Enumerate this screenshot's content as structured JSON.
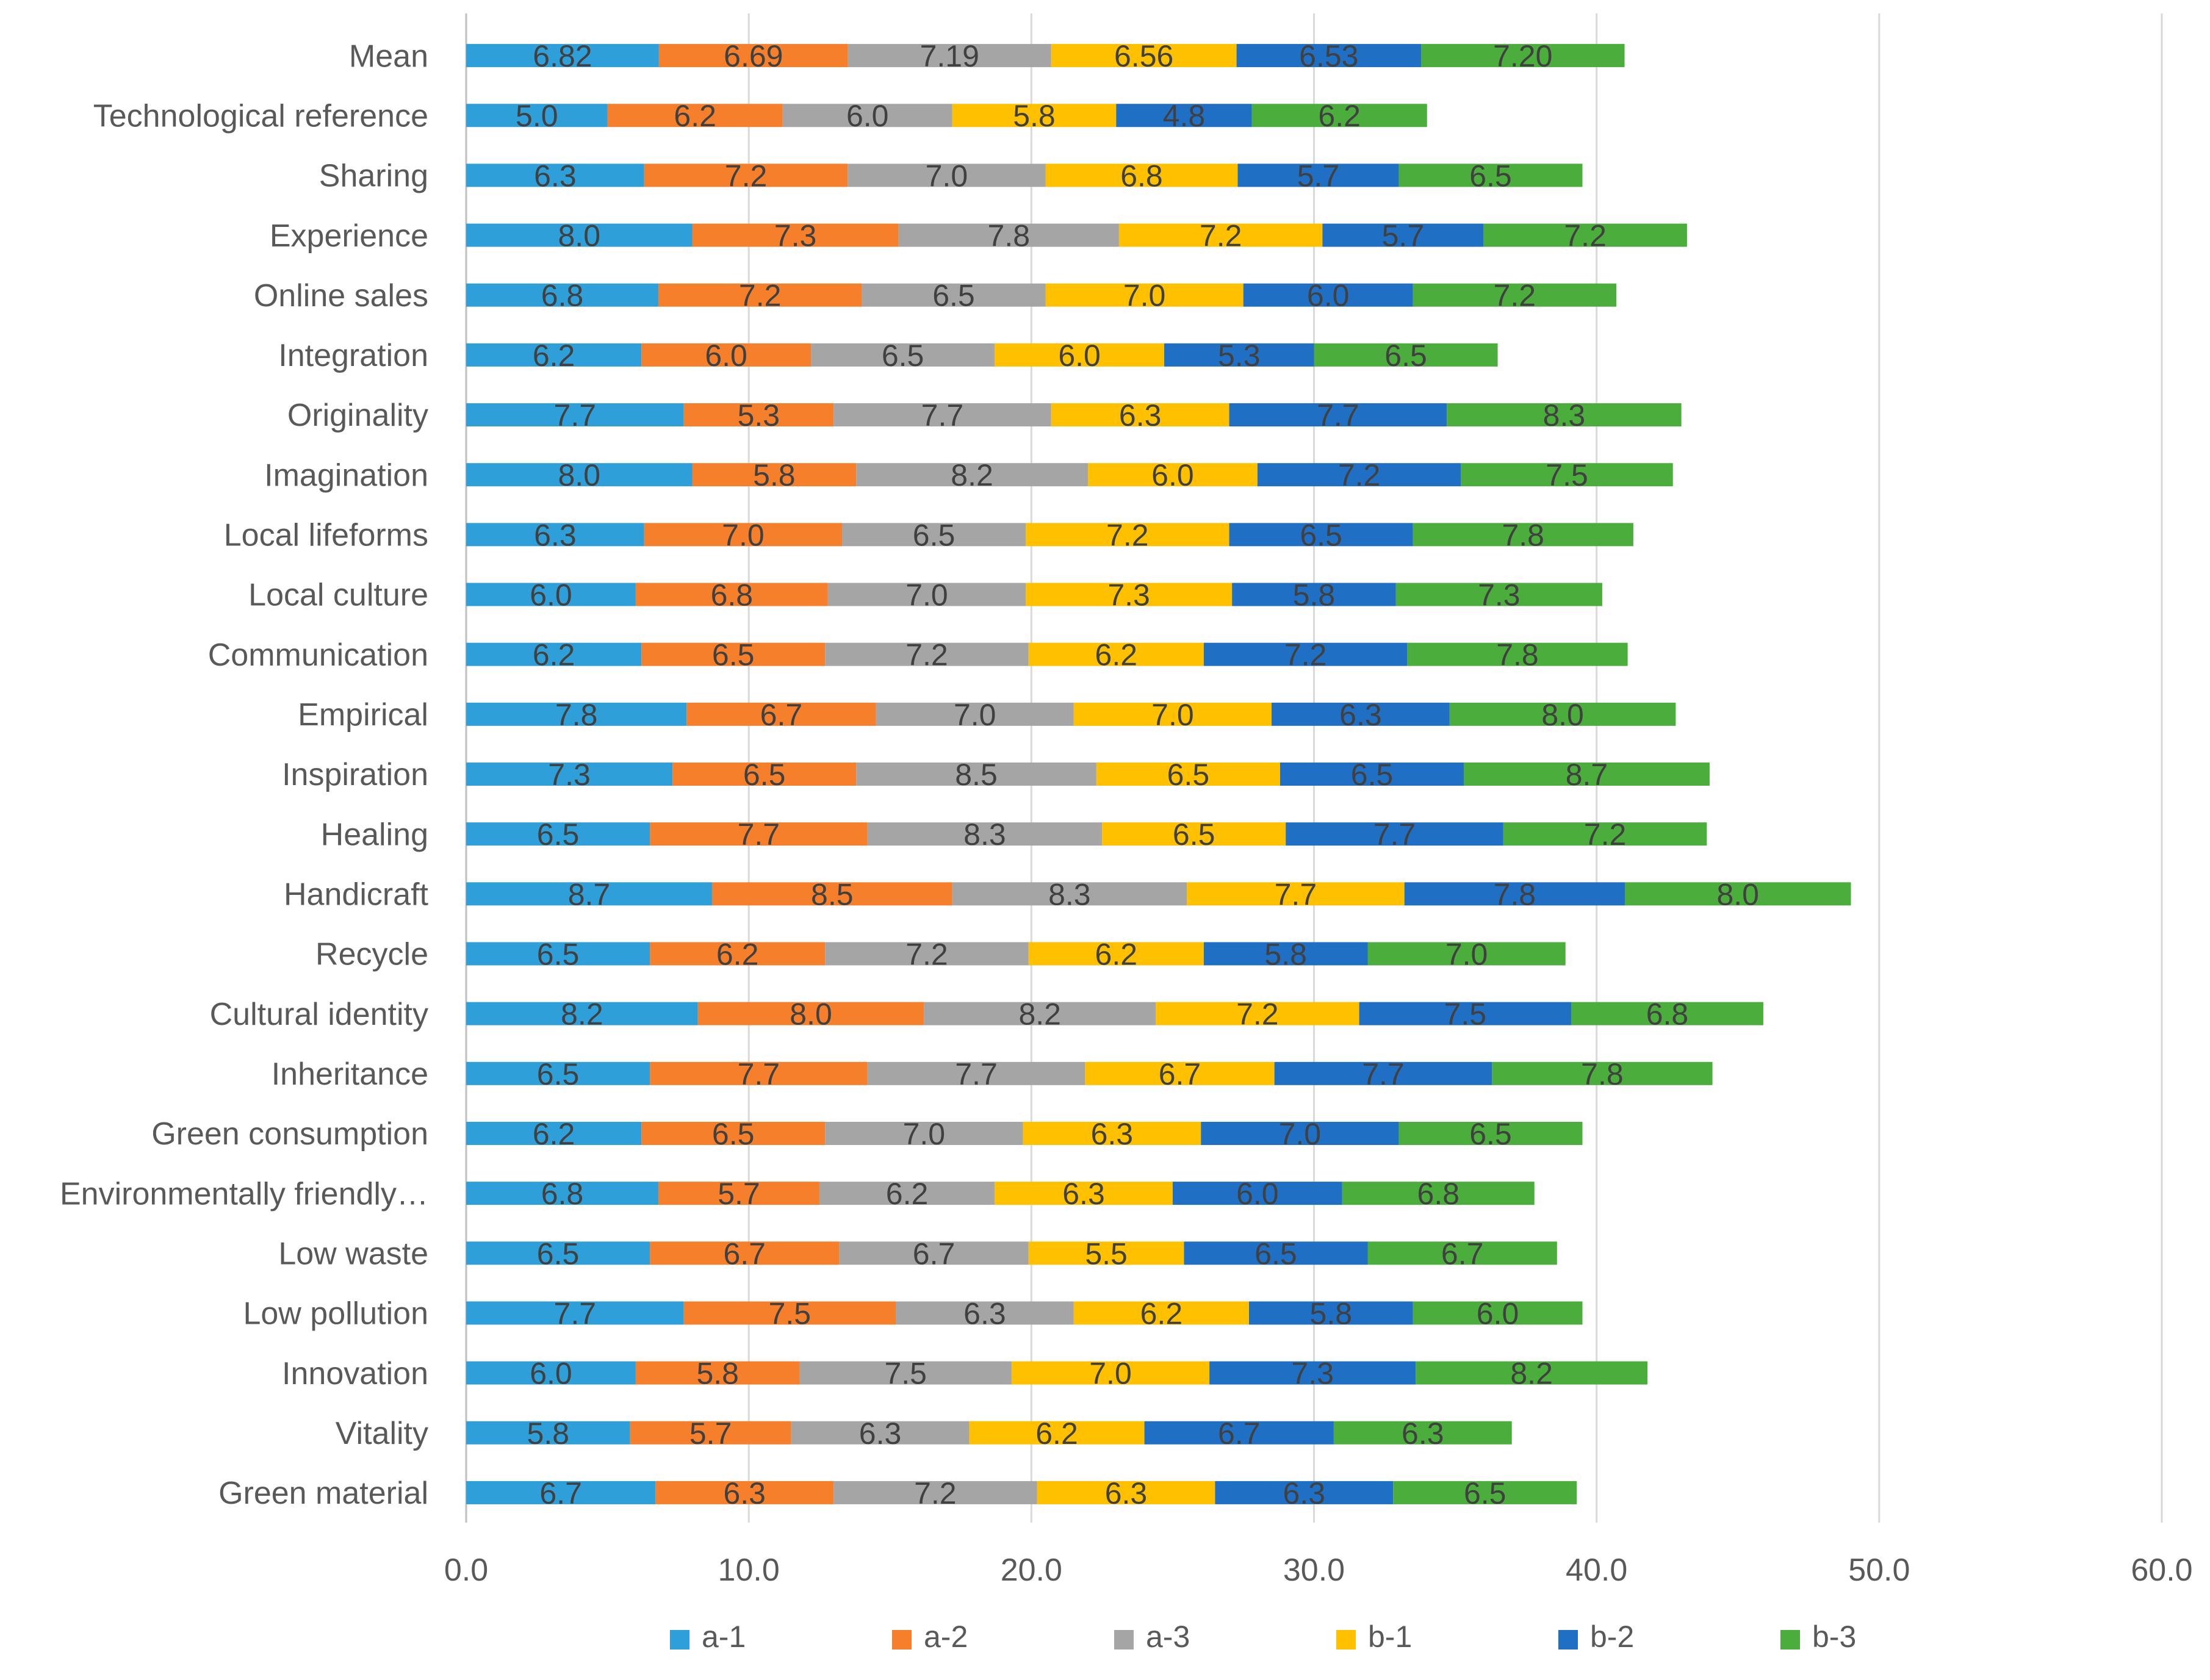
{
  "chart_data": {
    "type": "bar",
    "orientation": "horizontal",
    "stacked": true,
    "title": "",
    "xlabel": "",
    "ylabel": "",
    "xlim": [
      0,
      60
    ],
    "x_ticks": [
      "0.0",
      "10.0",
      "20.0",
      "30.0",
      "40.0",
      "50.0",
      "60.0"
    ],
    "grid": "vertical",
    "legend_position": "bottom",
    "categories": [
      "Mean",
      "Technological reference",
      "Sharing",
      "Experience",
      "Online sales",
      "Integration",
      "Originality",
      "Imagination",
      "Local lifeforms",
      "Local culture",
      "Communication",
      "Empirical",
      "Inspiration",
      "Healing",
      "Handicraft",
      "Recycle",
      "Cultural identity",
      "Inheritance",
      "Green consumption",
      "Environmentally friendly…",
      "Low waste",
      "Low pollution",
      "Innovation",
      "Vitality",
      "Green material"
    ],
    "series": [
      {
        "name": "a-1",
        "color": "#2E9FD8",
        "values": [
          6.82,
          5.0,
          6.3,
          8.0,
          6.8,
          6.2,
          7.7,
          8.0,
          6.3,
          6.0,
          6.2,
          7.8,
          7.3,
          6.5,
          8.7,
          6.5,
          8.2,
          6.5,
          6.2,
          6.8,
          6.5,
          7.7,
          6.0,
          5.8,
          6.7
        ],
        "labels": [
          "6.82",
          "5.0",
          "6.3",
          "8.0",
          "6.8",
          "6.2",
          "7.7",
          "8.0",
          "6.3",
          "6.0",
          "6.2",
          "7.8",
          "7.3",
          "6.5",
          "8.7",
          "6.5",
          "8.2",
          "6.5",
          "6.2",
          "6.8",
          "6.5",
          "7.7",
          "6.0",
          "5.8",
          "6.7"
        ]
      },
      {
        "name": "a-2",
        "color": "#F57F2A",
        "values": [
          6.69,
          6.2,
          7.2,
          7.3,
          7.2,
          6.0,
          5.3,
          5.8,
          7.0,
          6.8,
          6.5,
          6.7,
          6.5,
          7.7,
          8.5,
          6.2,
          8.0,
          7.7,
          6.5,
          5.7,
          6.7,
          7.5,
          5.8,
          5.7,
          6.3
        ],
        "labels": [
          "6.69",
          "6.2",
          "7.2",
          "7.3",
          "7.2",
          "6.0",
          "5.3",
          "5.8",
          "7.0",
          "6.8",
          "6.5",
          "6.7",
          "6.5",
          "7.7",
          "8.5",
          "6.2",
          "8.0",
          "7.7",
          "6.5",
          "5.7",
          "6.7",
          "7.5",
          "5.8",
          "5.7",
          "6.3"
        ]
      },
      {
        "name": "a-3",
        "color": "#A5A5A5",
        "values": [
          7.19,
          6.0,
          7.0,
          7.8,
          6.5,
          6.5,
          7.7,
          8.2,
          6.5,
          7.0,
          7.2,
          7.0,
          8.5,
          8.3,
          8.3,
          7.2,
          8.2,
          7.7,
          7.0,
          6.2,
          6.7,
          6.3,
          7.5,
          6.3,
          7.2
        ],
        "labels": [
          "7.19",
          "6.0",
          "7.0",
          "7.8",
          "6.5",
          "6.5",
          "7.7",
          "8.2",
          "6.5",
          "7.0",
          "7.2",
          "7.0",
          "8.5",
          "8.3",
          "8.3",
          "7.2",
          "8.2",
          "7.7",
          "7.0",
          "6.2",
          "6.7",
          "6.3",
          "7.5",
          "6.3",
          "7.2"
        ]
      },
      {
        "name": "b-1",
        "color": "#FFC000",
        "values": [
          6.56,
          5.8,
          6.8,
          7.2,
          7.0,
          6.0,
          6.3,
          6.0,
          7.2,
          7.3,
          6.2,
          7.0,
          6.5,
          6.5,
          7.7,
          6.2,
          7.2,
          6.7,
          6.3,
          6.3,
          5.5,
          6.2,
          7.0,
          6.2,
          6.3
        ],
        "labels": [
          "6.56",
          "5.8",
          "6.8",
          "7.2",
          "7.0",
          "6.0",
          "6.3",
          "6.0",
          "7.2",
          "7.3",
          "6.2",
          "7.0",
          "6.5",
          "6.5",
          "7.7",
          "6.2",
          "7.2",
          "6.7",
          "6.3",
          "6.3",
          "5.5",
          "6.2",
          "7.0",
          "6.2",
          "6.3"
        ]
      },
      {
        "name": "b-2",
        "color": "#1F6FC5",
        "values": [
          6.53,
          4.8,
          5.7,
          5.7,
          6.0,
          5.3,
          7.7,
          7.2,
          6.5,
          5.8,
          7.2,
          6.3,
          6.5,
          7.7,
          7.8,
          5.8,
          7.5,
          7.7,
          7.0,
          6.0,
          6.5,
          5.8,
          7.3,
          6.7,
          6.3
        ],
        "labels": [
          "6.53",
          "4.8",
          "5.7",
          "5.7",
          "6.0",
          "5.3",
          "7.7",
          "7.2",
          "6.5",
          "5.8",
          "7.2",
          "6.3",
          "6.5",
          "7.7",
          "7.8",
          "5.8",
          "7.5",
          "7.7",
          "7.0",
          "6.0",
          "6.5",
          "5.8",
          "7.3",
          "6.7",
          "6.3"
        ]
      },
      {
        "name": "b-3",
        "color": "#4BAE3C",
        "values": [
          7.2,
          6.2,
          6.5,
          7.2,
          7.2,
          6.5,
          8.3,
          7.5,
          7.8,
          7.3,
          7.8,
          8.0,
          8.7,
          7.2,
          8.0,
          7.0,
          6.8,
          7.8,
          6.5,
          6.8,
          6.7,
          6.0,
          8.2,
          6.3,
          6.5
        ],
        "labels": [
          "7.20",
          "6.2",
          "6.5",
          "7.2",
          "7.2",
          "6.5",
          "8.3",
          "7.5",
          "7.8",
          "7.3",
          "7.8",
          "8.0",
          "8.7",
          "7.2",
          "8.0",
          "7.0",
          "6.8",
          "7.8",
          "6.5",
          "6.8",
          "6.7",
          "6.0",
          "8.2",
          "6.3",
          "6.5"
        ]
      }
    ]
  }
}
